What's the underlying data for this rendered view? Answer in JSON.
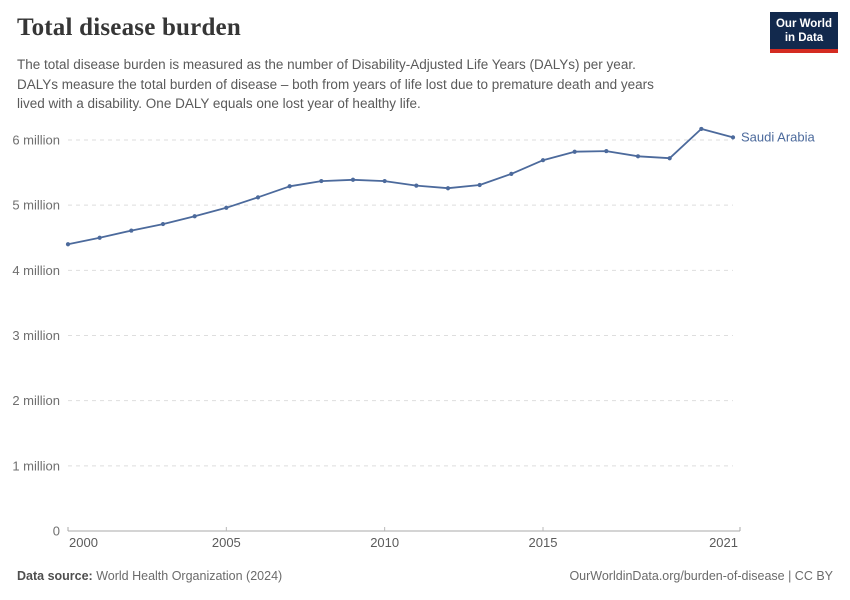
{
  "header": {
    "title": "Total disease burden",
    "subtitle_lines": [
      "The total disease burden is measured as the number of Disability-Adjusted Life Years (DALYs) per year.",
      "DALYs measure the total burden of disease – both from years of life lost due to premature death and years",
      "lived with a disability. One DALY equals one lost year of healthy life."
    ],
    "logo": {
      "line1": "Our World",
      "line2": "in Data",
      "bg_color": "#12294d",
      "accent_color": "#d42b21"
    }
  },
  "chart_data": {
    "type": "line",
    "title": "Total disease burden",
    "entity": "Saudi Arabia",
    "unit": "DALYs per year",
    "x": [
      2000,
      2001,
      2002,
      2003,
      2004,
      2005,
      2006,
      2007,
      2008,
      2009,
      2010,
      2011,
      2012,
      2013,
      2014,
      2015,
      2016,
      2017,
      2018,
      2019,
      2020,
      2021
    ],
    "series": [
      {
        "name": "Saudi Arabia",
        "color": "#4c6a9c",
        "values": [
          4400000,
          4500000,
          4610000,
          4710000,
          4830000,
          4960000,
          5120000,
          5290000,
          5370000,
          5390000,
          5370000,
          5300000,
          5260000,
          5310000,
          5480000,
          5690000,
          5820000,
          5830000,
          5750000,
          5720000,
          6170000,
          6040000
        ]
      }
    ],
    "xticks": [
      2000,
      2005,
      2010,
      2015,
      2021
    ],
    "yticks": [
      {
        "value": 0,
        "label": "0"
      },
      {
        "value": 1000000,
        "label": "1 million"
      },
      {
        "value": 2000000,
        "label": "2 million"
      },
      {
        "value": 3000000,
        "label": "3 million"
      },
      {
        "value": 4000000,
        "label": "4 million"
      },
      {
        "value": 5000000,
        "label": "5 million"
      },
      {
        "value": 6000000,
        "label": "6 million"
      }
    ],
    "xlim": [
      2000,
      2021
    ],
    "ylim": [
      0,
      6000000
    ],
    "grid": "horizontal-dashed",
    "legend_position": "end-of-line"
  },
  "footer": {
    "datasource_label": "Data source:",
    "datasource_value": " World Health Organization (2024)",
    "credit": "OurWorldinData.org/burden-of-disease | CC BY"
  }
}
